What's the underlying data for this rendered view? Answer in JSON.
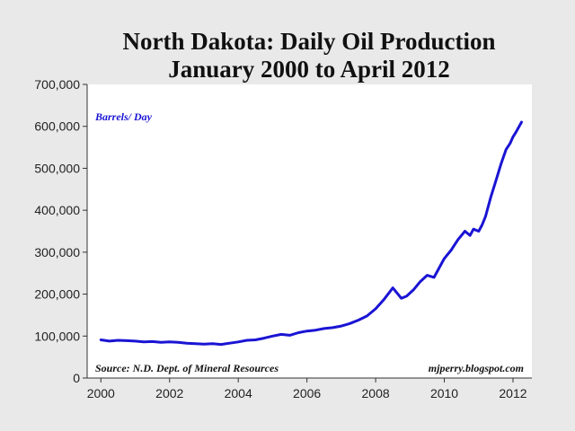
{
  "chart_data": {
    "type": "line",
    "title": "North Dakota: Daily Oil Production",
    "subtitle": "January 2000 to April 2012",
    "xlabel": "",
    "ylabel": "",
    "series_label": "Barrels/ Day",
    "source_note": "Source: N.D. Dept. of Mineral Resources",
    "credit": "mjperry.blogspot.com",
    "xlim": [
      1999.6,
      2012.55
    ],
    "ylim": [
      0,
      700000
    ],
    "x_ticks": [
      2000,
      2002,
      2004,
      2006,
      2008,
      2010,
      2012
    ],
    "x_tick_labels": [
      "2000",
      "2002",
      "2004",
      "2006",
      "2008",
      "2010",
      "2012"
    ],
    "y_ticks": [
      0,
      100000,
      200000,
      300000,
      400000,
      500000,
      600000,
      700000
    ],
    "y_tick_labels": [
      "0",
      "100,000",
      "200,000",
      "300,000",
      "400,000",
      "500,000",
      "600,000",
      "700,000"
    ],
    "grid": false,
    "colors": {
      "line": "#1a14d4",
      "background": "#e9e9e9",
      "plot": "#ffffff",
      "axis": "#333333"
    },
    "series": [
      {
        "name": "Barrels/ Day",
        "x": [
          2000.0,
          2000.25,
          2000.5,
          2000.75,
          2001.0,
          2001.25,
          2001.5,
          2001.75,
          2002.0,
          2002.25,
          2002.5,
          2002.75,
          2003.0,
          2003.25,
          2003.5,
          2003.75,
          2004.0,
          2004.25,
          2004.5,
          2004.75,
          2005.0,
          2005.25,
          2005.5,
          2005.75,
          2006.0,
          2006.25,
          2006.5,
          2006.75,
          2007.0,
          2007.25,
          2007.5,
          2007.75,
          2008.0,
          2008.25,
          2008.5,
          2008.75,
          2008.9,
          2009.1,
          2009.3,
          2009.5,
          2009.7,
          2009.9,
          2010.0,
          2010.2,
          2010.4,
          2010.6,
          2010.75,
          2010.85,
          2011.0,
          2011.1,
          2011.2,
          2011.35,
          2011.5,
          2011.65,
          2011.8,
          2011.92,
          2012.0,
          2012.08,
          2012.25
        ],
        "values": [
          91000,
          88000,
          90000,
          89000,
          88000,
          86000,
          87000,
          85000,
          86000,
          85000,
          83000,
          82000,
          81000,
          82000,
          80000,
          83000,
          86000,
          90000,
          91000,
          95000,
          100000,
          104000,
          102000,
          108000,
          112000,
          114000,
          118000,
          120000,
          124000,
          130000,
          138000,
          148000,
          165000,
          188000,
          215000,
          190000,
          195000,
          210000,
          230000,
          245000,
          240000,
          270000,
          285000,
          305000,
          330000,
          350000,
          340000,
          355000,
          350000,
          365000,
          385000,
          430000,
          470000,
          510000,
          545000,
          560000,
          575000,
          585000,
          610000
        ]
      }
    ]
  }
}
